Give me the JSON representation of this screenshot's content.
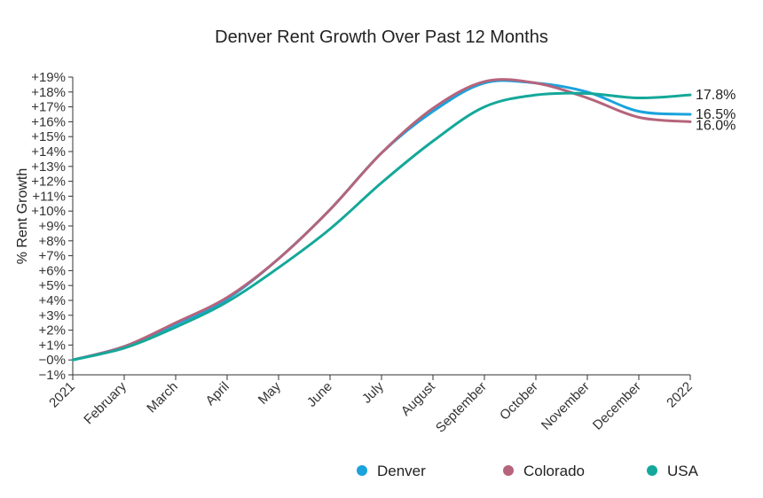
{
  "chart_data": {
    "type": "line",
    "title": "Denver Rent Growth Over Past 12 Months",
    "xlabel": "",
    "ylabel": "% Rent Growth",
    "x_ticks": [
      "2021",
      "February",
      "March",
      "April",
      "May",
      "June",
      "July",
      "August",
      "September",
      "October",
      "November",
      "December",
      "2022"
    ],
    "y_ticks": [
      "−1%",
      "−0%",
      "+1%",
      "+2%",
      "+3%",
      "+4%",
      "+5%",
      "+6%",
      "+7%",
      "+8%",
      "+9%",
      "+10%",
      "+11%",
      "+12%",
      "+13%",
      "+14%",
      "+15%",
      "+16%",
      "+17%",
      "+18%",
      "+19%"
    ],
    "ylim": [
      -1,
      19
    ],
    "grid": false,
    "legend_position": "bottom-right",
    "series": [
      {
        "name": "Denver",
        "color": "#1aa3dc",
        "end_label": "16.5%",
        "values": [
          0,
          0.9,
          2.4,
          4.1,
          6.8,
          10.1,
          13.9,
          16.7,
          18.6,
          18.6,
          18.0,
          16.7,
          16.5
        ]
      },
      {
        "name": "Colorado",
        "color": "#b5647c",
        "end_label": "16.0%",
        "values": [
          0,
          0.9,
          2.5,
          4.2,
          6.8,
          10.1,
          13.9,
          16.9,
          18.7,
          18.6,
          17.6,
          16.3,
          16.0
        ]
      },
      {
        "name": "USA",
        "color": "#14a89a",
        "end_label": "17.8%",
        "values": [
          0,
          0.8,
          2.2,
          3.9,
          6.2,
          8.8,
          11.9,
          14.7,
          17.0,
          17.8,
          17.9,
          17.6,
          17.8
        ]
      }
    ]
  }
}
